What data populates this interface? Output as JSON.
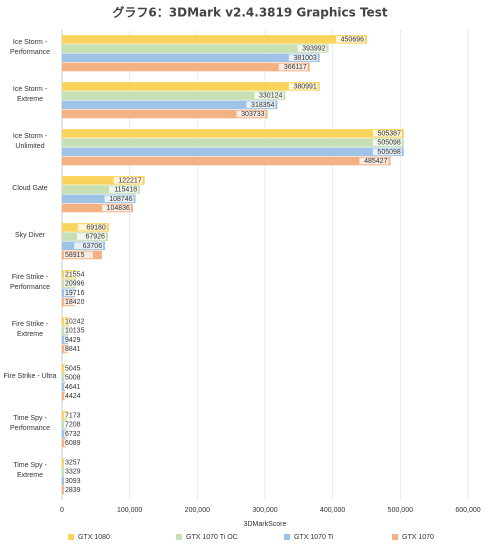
{
  "chart_data": {
    "type": "bar",
    "orientation": "horizontal",
    "title": "グラフ6：3DMark v2.4.3819 Graphics Test",
    "xlabel": "3DMarkScore",
    "categories": [
      "Ice Storm - Performance",
      "Ice Storm - Extreme",
      "Ice Storm - Unlimited",
      "Cloud Gate",
      "Sky Diver",
      "Fire Strike - Performance",
      "Fire Strike - Extreme",
      "Fire Strike - Ultra",
      "Time Spy - Performance",
      "Time Spy - Extreme"
    ],
    "series": [
      {
        "name": "GTX 1080",
        "color": "#f9d45c",
        "values": [
          450696,
          380991,
          505387,
          122217,
          69180,
          21554,
          10242,
          5045,
          7173,
          3257
        ]
      },
      {
        "name": "GTX 1070 Ti OC",
        "color": "#c6e0b4",
        "values": [
          393992,
          330124,
          505098,
          115418,
          67926,
          20996,
          10135,
          5008,
          7208,
          3329
        ]
      },
      {
        "name": "GTX 1070 Ti",
        "color": "#9fc3e7",
        "values": [
          381003,
          318354,
          505098,
          108746,
          63706,
          19716,
          9429,
          4641,
          6732,
          3093
        ]
      },
      {
        "name": "GTX 1070",
        "color": "#f4b183",
        "values": [
          366117,
          303733,
          485427,
          104836,
          58915,
          18420,
          8841,
          4424,
          6089,
          2839
        ]
      }
    ],
    "xlim": [
      0,
      600000
    ],
    "xticks": [
      0,
      {
        "value": 100000,
        "label": "100,000"
      },
      {
        "value": 200000,
        "label": "200,000"
      },
      {
        "value": 300000,
        "label": "300,000"
      },
      {
        "value": 400000,
        "label": "400,000"
      },
      {
        "value": 500000,
        "label": "500,000"
      },
      {
        "value": 600000,
        "label": "600,000"
      }
    ],
    "grid": true,
    "legend": "bottom"
  }
}
